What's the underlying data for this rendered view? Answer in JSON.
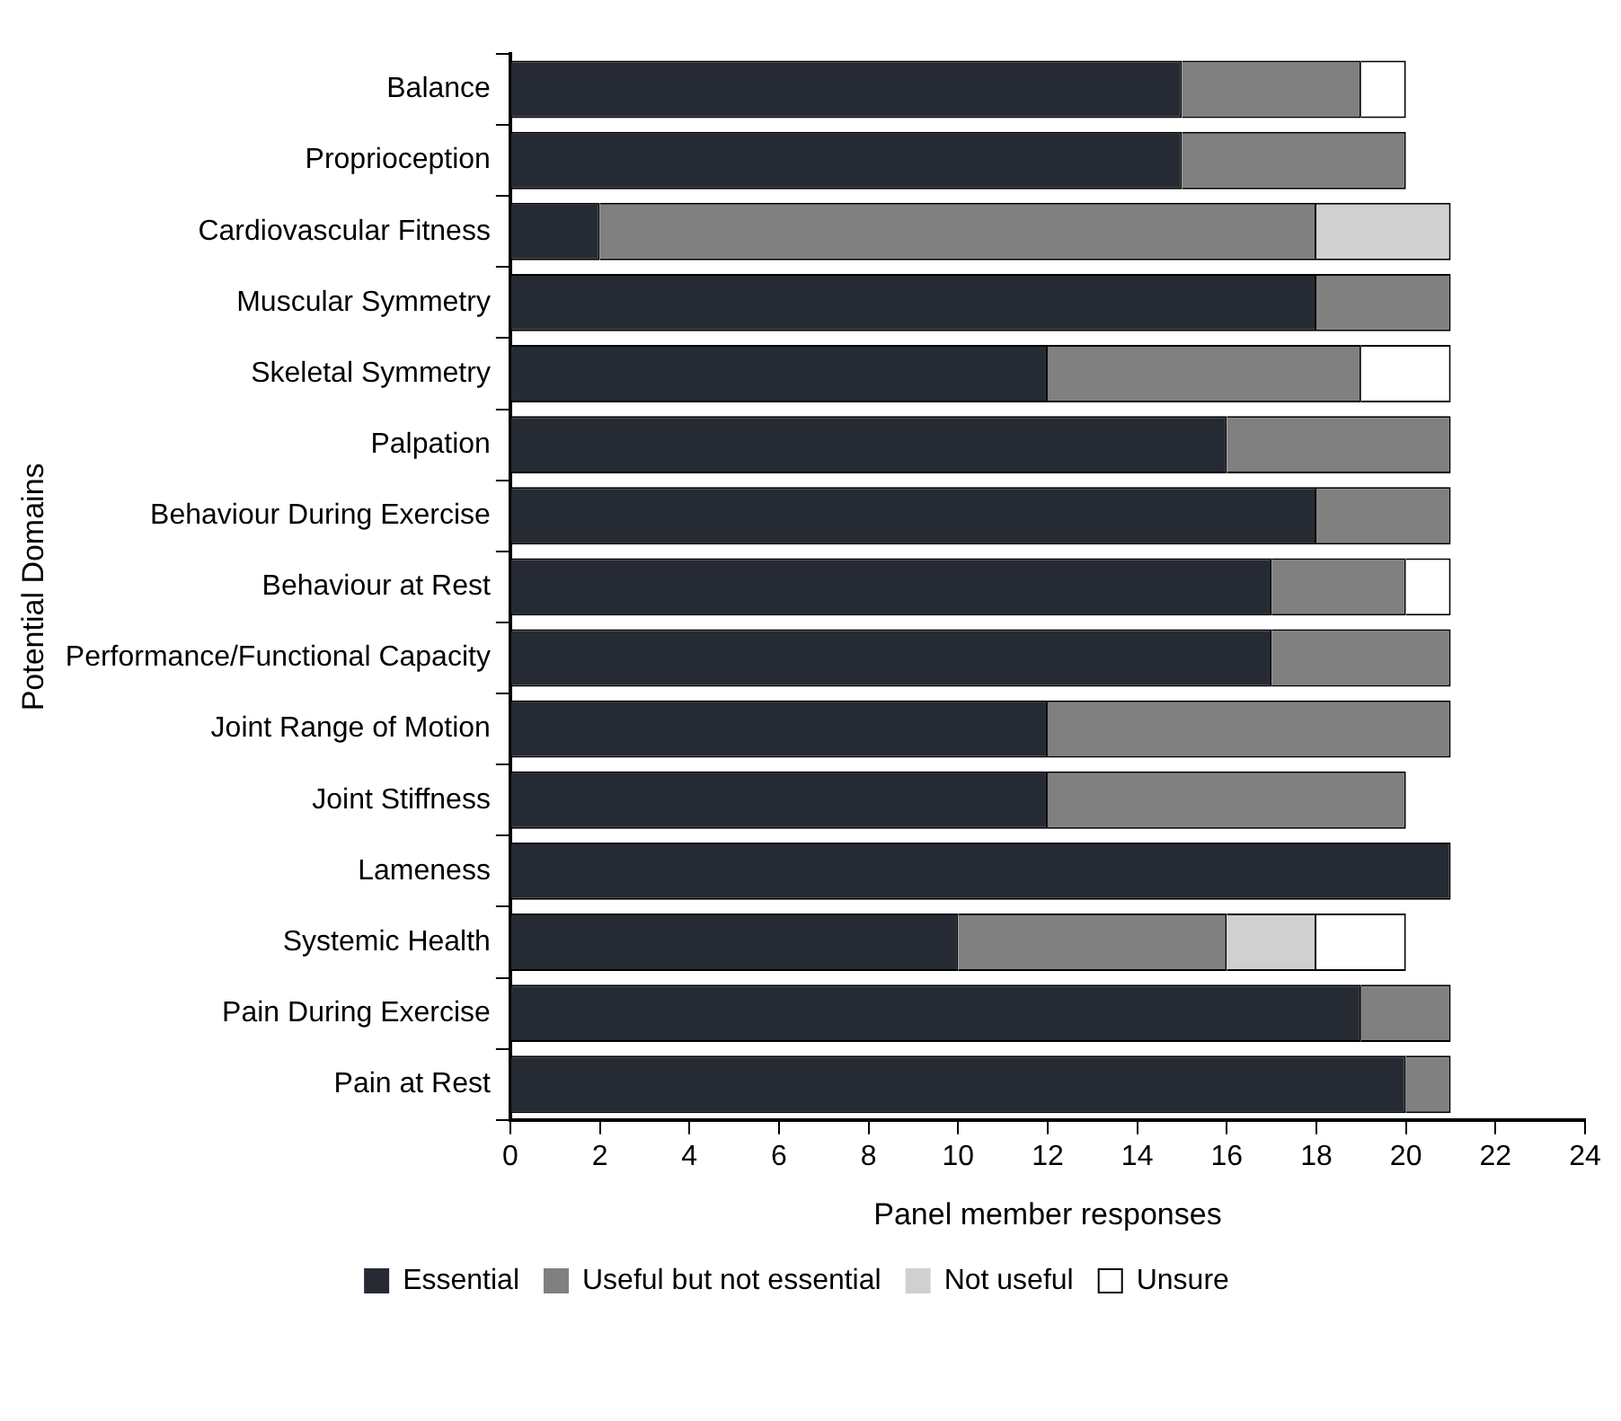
{
  "chart_data": {
    "type": "bar",
    "orientation": "horizontal",
    "stacked": true,
    "xlabel": "Panel member responses",
    "ylabel": "Potential Domains",
    "categories": [
      "Balance",
      "Proprioception",
      "Cardiovascular Fitness",
      "Muscular Symmetry",
      "Skeletal Symmetry",
      "Palpation",
      "Behaviour During Exercise",
      "Behaviour at Rest",
      "Performance/Functional Capacity",
      "Joint Range of Motion",
      "Joint Stiffness",
      "Lameness",
      "Systemic Health",
      "Pain During Exercise",
      "Pain at Rest"
    ],
    "series": [
      {
        "name": "Essential",
        "color": "#262a33",
        "values": [
          15,
          15,
          2,
          18,
          12,
          16,
          18,
          17,
          17,
          12,
          12,
          21,
          10,
          19,
          20
        ]
      },
      {
        "name": "Useful but not essential",
        "color": "#808080",
        "values": [
          4,
          5,
          16,
          3,
          7,
          5,
          3,
          3,
          4,
          9,
          8,
          0,
          6,
          2,
          1
        ]
      },
      {
        "name": "Not useful",
        "color": "#d0d0d0",
        "values": [
          0,
          0,
          3,
          0,
          0,
          0,
          0,
          0,
          0,
          0,
          0,
          0,
          2,
          0,
          0
        ]
      },
      {
        "name": "Unsure",
        "color": "#ffffff",
        "values": [
          1,
          0,
          0,
          0,
          2,
          0,
          0,
          1,
          0,
          0,
          0,
          0,
          2,
          0,
          0
        ]
      }
    ],
    "xlim": [
      0,
      24
    ],
    "xticks": [
      0,
      2,
      4,
      6,
      8,
      10,
      12,
      14,
      16,
      18,
      20,
      22,
      24
    ],
    "grid": false,
    "legend": "bottom"
  }
}
